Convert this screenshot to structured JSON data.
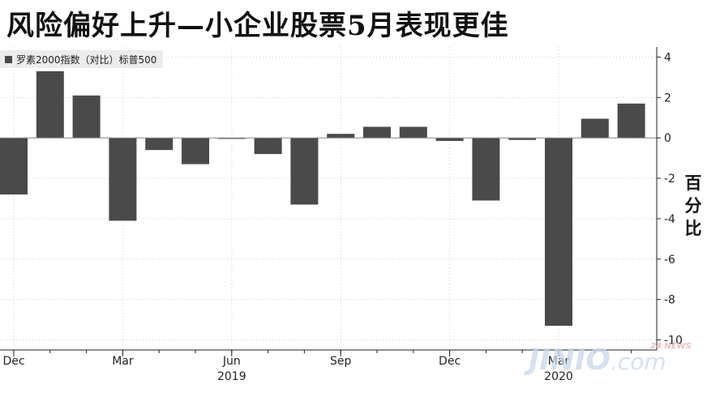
{
  "title": "风险偏好上升—小企业股票5月表现更佳",
  "chart_data": {
    "type": "bar",
    "title": "风险偏好上升—小企业股票5月表现更佳",
    "legend": [
      "罗素2000指数（对比）标普500"
    ],
    "legend_placement": "top-left",
    "ylabel": "百分比",
    "ylim": [
      -10.5,
      4.5
    ],
    "y_ticks": [
      4,
      2,
      0,
      -2,
      -4,
      -6,
      -8,
      -10
    ],
    "y_axis_side": "right",
    "grid": true,
    "bar_color": "#4a4a4a",
    "categories": [
      "2018-12",
      "2019-01",
      "2019-02",
      "2019-03",
      "2019-04",
      "2019-05",
      "2019-06",
      "2019-07",
      "2019-08",
      "2019-09",
      "2019-10",
      "2019-11",
      "2019-12",
      "2020-01",
      "2020-02",
      "2020-03",
      "2020-04",
      "2020-05"
    ],
    "series": [
      {
        "name": "罗素2000指数（对比）标普500",
        "values": [
          -2.8,
          3.3,
          2.1,
          -4.1,
          -0.6,
          -1.3,
          -0.05,
          -0.8,
          -3.3,
          0.2,
          0.55,
          0.55,
          -0.15,
          -3.1,
          -0.1,
          -9.3,
          0.95,
          1.7
        ]
      }
    ],
    "x_tick_labels": [
      {
        "label": "Dec",
        "index": 0
      },
      {
        "label": "Mar",
        "index": 3
      },
      {
        "label": "Jun",
        "index": 6
      },
      {
        "label": "Sep",
        "index": 9
      },
      {
        "label": "Dec",
        "index": 12
      },
      {
        "label": "Mar",
        "index": 15
      }
    ],
    "x_year_labels": [
      {
        "label": "2019",
        "index": 6
      },
      {
        "label": "2020",
        "index": 15
      }
    ]
  },
  "watermark": {
    "main": "JINIO",
    "suffix": ".com",
    "tag": "24 NEWS"
  }
}
